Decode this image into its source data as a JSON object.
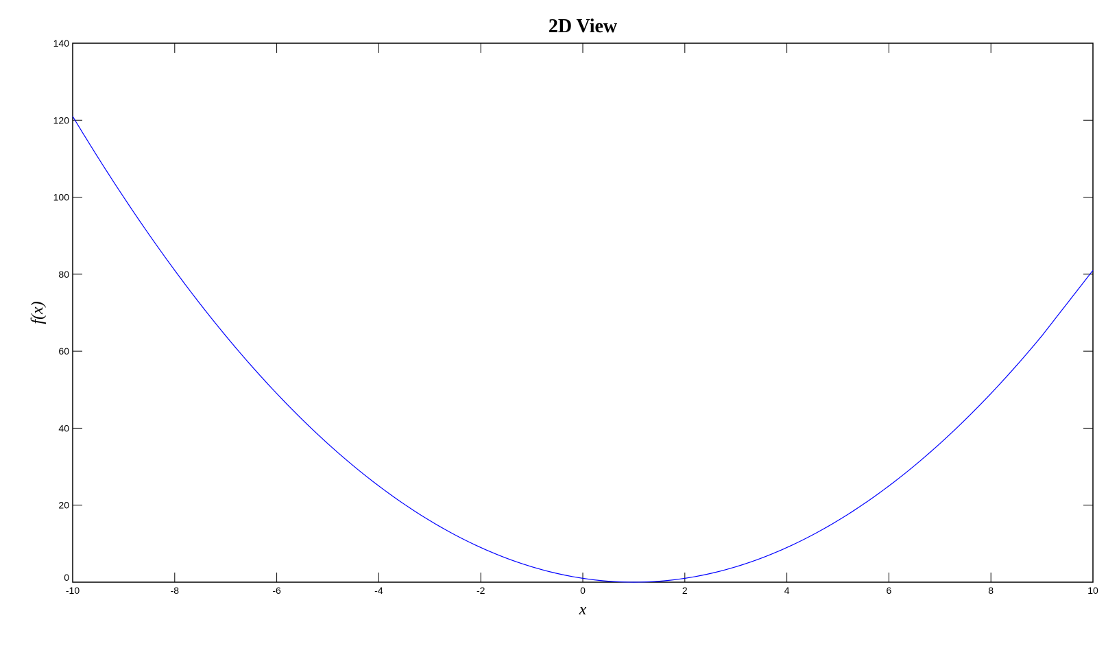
{
  "chart_data": {
    "type": "line",
    "title": "2D View",
    "xlabel": "x",
    "ylabel": "f(x)",
    "xlim": [
      -10,
      10
    ],
    "ylim": [
      0,
      140
    ],
    "xticks": [
      -10,
      -8,
      -6,
      -4,
      -2,
      0,
      2,
      4,
      6,
      8,
      10
    ],
    "yticks": [
      0,
      20,
      40,
      60,
      80,
      100,
      120,
      140
    ],
    "grid": false,
    "line_color": "#0000ff",
    "series": [
      {
        "x": [
          -10,
          -9,
          -8,
          -7,
          -6,
          -5,
          -4,
          -3,
          -2,
          -1,
          0,
          1,
          2,
          3,
          4,
          5,
          6,
          7,
          8,
          9,
          10
        ],
        "y": [
          121,
          100,
          81,
          64,
          49,
          36,
          25,
          16,
          9,
          4,
          1,
          0,
          1,
          4,
          9,
          16,
          25,
          36,
          49,
          64,
          81
        ]
      }
    ]
  }
}
